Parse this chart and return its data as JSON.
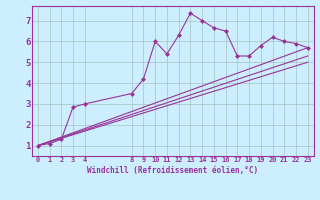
{
  "background_color": "#cceeff",
  "grid_color": "#aacccc",
  "line_color": "#993399",
  "marker_color": "#993399",
  "xlabel": "Windchill (Refroidissement éolien,°C)",
  "xlim": [
    -0.5,
    23.5
  ],
  "ylim": [
    0.5,
    7.7
  ],
  "yticks": [
    1,
    2,
    3,
    4,
    5,
    6,
    7
  ],
  "xticks": [
    0,
    1,
    2,
    3,
    4,
    8,
    9,
    10,
    11,
    12,
    13,
    14,
    15,
    16,
    17,
    18,
    19,
    20,
    21,
    22,
    23
  ],
  "series_main": {
    "x": [
      0,
      1,
      2,
      3,
      4,
      8,
      9,
      10,
      11,
      12,
      13,
      14,
      15,
      16,
      17,
      18,
      19,
      20,
      21,
      22,
      23
    ],
    "y": [
      1.0,
      1.1,
      1.3,
      2.85,
      3.0,
      3.5,
      4.2,
      6.0,
      5.4,
      6.3,
      7.35,
      7.0,
      6.65,
      6.5,
      5.3,
      5.3,
      5.8,
      6.2,
      6.0,
      5.9,
      5.7
    ]
  },
  "series_lines": [
    {
      "x": [
        0,
        23
      ],
      "y": [
        1.0,
        5.7
      ]
    },
    {
      "x": [
        0,
        23
      ],
      "y": [
        1.0,
        5.3
      ]
    },
    {
      "x": [
        0,
        23
      ],
      "y": [
        1.0,
        5.0
      ]
    }
  ]
}
